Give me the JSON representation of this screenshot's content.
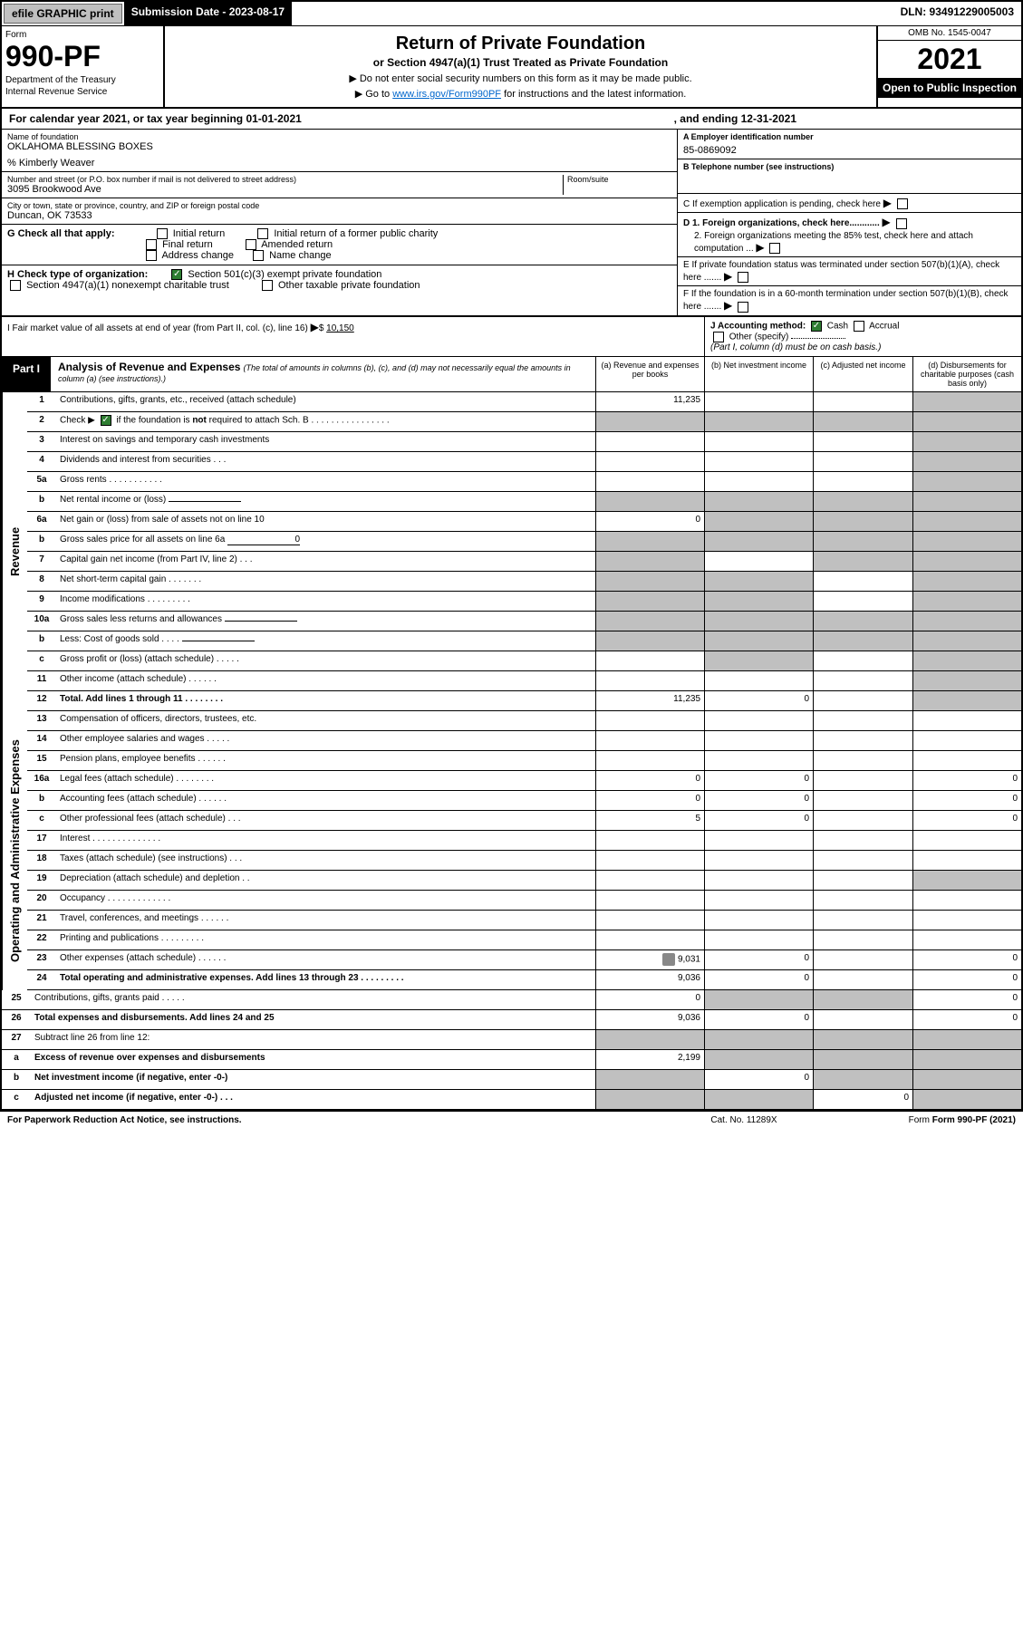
{
  "topbar": {
    "efile": "efile GRAPHIC print",
    "submission": "Submission Date - 2023-08-17",
    "dln": "DLN: 93491229005003"
  },
  "header": {
    "form_label": "Form",
    "form_num": "990-PF",
    "dept1": "Department of the Treasury",
    "dept2": "Internal Revenue Service",
    "title": "Return of Private Foundation",
    "subtitle": "or Section 4947(a)(1) Trust Treated as Private Foundation",
    "note1": "▶ Do not enter social security numbers on this form as it may be made public.",
    "note2_pre": "▶ Go to ",
    "note2_link": "www.irs.gov/Form990PF",
    "note2_post": " for instructions and the latest information.",
    "omb": "OMB No. 1545-0047",
    "year": "2021",
    "open": "Open to Public Inspection"
  },
  "calyear": {
    "text1": "For calendar year 2021, or tax year beginning 01-01-2021",
    "text2": ", and ending 12-31-2021"
  },
  "info": {
    "name_label": "Name of foundation",
    "name": "OKLAHOMA BLESSING BOXES",
    "care_of": "% Kimberly Weaver",
    "addr_label": "Number and street (or P.O. box number if mail is not delivered to street address)",
    "addr": "3095 Brookwood Ave",
    "room_label": "Room/suite",
    "city_label": "City or town, state or province, country, and ZIP or foreign postal code",
    "city": "Duncan, OK  73533",
    "ein_label": "A Employer identification number",
    "ein": "85-0869092",
    "phone_label": "B Telephone number (see instructions)",
    "c_label": "C If exemption application is pending, check here",
    "d1": "D 1. Foreign organizations, check here............",
    "d2": "2. Foreign organizations meeting the 85% test, check here and attach computation ...",
    "e_label": "E If private foundation status was terminated under section 507(b)(1)(A), check here .......",
    "f_label": "F If the foundation is in a 60-month termination under section 507(b)(1)(B), check here .......",
    "g_label": "G Check all that apply:",
    "g_opts": [
      "Initial return",
      "Initial return of a former public charity",
      "Final return",
      "Amended return",
      "Address change",
      "Name change"
    ],
    "h_label": "H Check type of organization:",
    "h_opt1": "Section 501(c)(3) exempt private foundation",
    "h_opt2": "Section 4947(a)(1) nonexempt charitable trust",
    "h_opt3": "Other taxable private foundation",
    "i_label": "I Fair market value of all assets at end of year (from Part II, col. (c), line 16)",
    "i_val": "10,150",
    "j_label": "J Accounting method:",
    "j_cash": "Cash",
    "j_accrual": "Accrual",
    "j_other": "Other (specify)",
    "j_note": "(Part I, column (d) must be on cash basis.)"
  },
  "part1": {
    "label": "Part I",
    "title": "Analysis of Revenue and Expenses",
    "title_note": "(The total of amounts in columns (b), (c), and (d) may not necessarily equal the amounts in column (a) (see instructions).)",
    "col_a": "(a) Revenue and expenses per books",
    "col_b": "(b) Net investment income",
    "col_c": "(c) Adjusted net income",
    "col_d": "(d) Disbursements for charitable purposes (cash basis only)"
  },
  "sidelabels": {
    "revenue": "Revenue",
    "expenses": "Operating and Administrative Expenses"
  },
  "rows": [
    {
      "num": "1",
      "desc": "Contributions, gifts, grants, etc., received (attach schedule)",
      "a": "11,235",
      "b": "",
      "c": "",
      "d": "",
      "shade": [
        "d"
      ]
    },
    {
      "num": "2",
      "desc": "Check ▶ ☑ if the foundation is not required to attach Sch. B",
      "a": "",
      "b": "",
      "c": "",
      "d": "",
      "shade": [
        "a",
        "b",
        "c",
        "d"
      ],
      "bold": false,
      "checkline": true
    },
    {
      "num": "3",
      "desc": "Interest on savings and temporary cash investments",
      "a": "",
      "b": "",
      "c": "",
      "d": "",
      "shade": [
        "d"
      ]
    },
    {
      "num": "4",
      "desc": "Dividends and interest from securities  .  .  .",
      "a": "",
      "b": "",
      "c": "",
      "d": "",
      "shade": [
        "d"
      ]
    },
    {
      "num": "5a",
      "desc": "Gross rents  .  .  .  .  .  .  .  .  .  .  .",
      "a": "",
      "b": "",
      "c": "",
      "d": "",
      "shade": [
        "d"
      ]
    },
    {
      "num": "b",
      "desc": "Net rental income or (loss)",
      "a": "",
      "b": "",
      "c": "",
      "d": "",
      "shade": [
        "a",
        "b",
        "c",
        "d"
      ],
      "inline": true
    },
    {
      "num": "6a",
      "desc": "Net gain or (loss) from sale of assets not on line 10",
      "a": "0",
      "b": "",
      "c": "",
      "d": "",
      "shade": [
        "b",
        "c",
        "d"
      ]
    },
    {
      "num": "b",
      "desc": "Gross sales price for all assets on line 6a",
      "a": "",
      "b": "",
      "c": "",
      "d": "",
      "shade": [
        "a",
        "b",
        "c",
        "d"
      ],
      "inline": true,
      "inline_val": "0"
    },
    {
      "num": "7",
      "desc": "Capital gain net income (from Part IV, line 2)  .  .  .",
      "a": "",
      "b": "",
      "c": "",
      "d": "",
      "shade": [
        "a",
        "c",
        "d"
      ]
    },
    {
      "num": "8",
      "desc": "Net short-term capital gain  .  .  .  .  .  .  .",
      "a": "",
      "b": "",
      "c": "",
      "d": "",
      "shade": [
        "a",
        "b",
        "d"
      ]
    },
    {
      "num": "9",
      "desc": "Income modifications  .  .  .  .  .  .  .  .  .",
      "a": "",
      "b": "",
      "c": "",
      "d": "",
      "shade": [
        "a",
        "b",
        "d"
      ]
    },
    {
      "num": "10a",
      "desc": "Gross sales less returns and allowances",
      "a": "",
      "b": "",
      "c": "",
      "d": "",
      "shade": [
        "a",
        "b",
        "c",
        "d"
      ],
      "inline": true
    },
    {
      "num": "b",
      "desc": "Less: Cost of goods sold  .  .  .  .",
      "a": "",
      "b": "",
      "c": "",
      "d": "",
      "shade": [
        "a",
        "b",
        "c",
        "d"
      ],
      "inline": true
    },
    {
      "num": "c",
      "desc": "Gross profit or (loss) (attach schedule)  .  .  .  .  .",
      "a": "",
      "b": "",
      "c": "",
      "d": "",
      "shade": [
        "b",
        "d"
      ]
    },
    {
      "num": "11",
      "desc": "Other income (attach schedule)  .  .  .  .  .  .",
      "a": "",
      "b": "",
      "c": "",
      "d": "",
      "shade": [
        "d"
      ]
    },
    {
      "num": "12",
      "desc": "Total. Add lines 1 through 11  .  .  .  .  .  .  .  .",
      "a": "11,235",
      "b": "0",
      "c": "",
      "d": "",
      "shade": [
        "d"
      ],
      "bold": true
    },
    {
      "num": "13",
      "desc": "Compensation of officers, directors, trustees, etc.",
      "a": "",
      "b": "",
      "c": "",
      "d": ""
    },
    {
      "num": "14",
      "desc": "Other employee salaries and wages  .  .  .  .  .",
      "a": "",
      "b": "",
      "c": "",
      "d": ""
    },
    {
      "num": "15",
      "desc": "Pension plans, employee benefits  .  .  .  .  .  .",
      "a": "",
      "b": "",
      "c": "",
      "d": ""
    },
    {
      "num": "16a",
      "desc": "Legal fees (attach schedule)  .  .  .  .  .  .  .  .",
      "a": "0",
      "b": "0",
      "c": "",
      "d": "0"
    },
    {
      "num": "b",
      "desc": "Accounting fees (attach schedule)  .  .  .  .  .  .",
      "a": "0",
      "b": "0",
      "c": "",
      "d": "0"
    },
    {
      "num": "c",
      "desc": "Other professional fees (attach schedule)  .  .  .",
      "a": "5",
      "b": "0",
      "c": "",
      "d": "0"
    },
    {
      "num": "17",
      "desc": "Interest  .  .  .  .  .  .  .  .  .  .  .  .  .  .",
      "a": "",
      "b": "",
      "c": "",
      "d": ""
    },
    {
      "num": "18",
      "desc": "Taxes (attach schedule) (see instructions)  .  .  .",
      "a": "",
      "b": "",
      "c": "",
      "d": ""
    },
    {
      "num": "19",
      "desc": "Depreciation (attach schedule) and depletion  .  .",
      "a": "",
      "b": "",
      "c": "",
      "d": "",
      "shade": [
        "d"
      ]
    },
    {
      "num": "20",
      "desc": "Occupancy  .  .  .  .  .  .  .  .  .  .  .  .  .",
      "a": "",
      "b": "",
      "c": "",
      "d": ""
    },
    {
      "num": "21",
      "desc": "Travel, conferences, and meetings  .  .  .  .  .  .",
      "a": "",
      "b": "",
      "c": "",
      "d": ""
    },
    {
      "num": "22",
      "desc": "Printing and publications  .  .  .  .  .  .  .  .  .",
      "a": "",
      "b": "",
      "c": "",
      "d": ""
    },
    {
      "num": "23",
      "desc": "Other expenses (attach schedule)  .  .  .  .  .  .",
      "a": "9,031",
      "b": "0",
      "c": "",
      "d": "0",
      "attach": true
    },
    {
      "num": "24",
      "desc": "Total operating and administrative expenses. Add lines 13 through 23  .  .  .  .  .  .  .  .  .",
      "a": "9,036",
      "b": "0",
      "c": "",
      "d": "0",
      "bold": true
    },
    {
      "num": "25",
      "desc": "Contributions, gifts, grants paid  .  .  .  .  .",
      "a": "0",
      "b": "",
      "c": "",
      "d": "0",
      "shade": [
        "b",
        "c"
      ]
    },
    {
      "num": "26",
      "desc": "Total expenses and disbursements. Add lines 24 and 25",
      "a": "9,036",
      "b": "0",
      "c": "",
      "d": "0",
      "bold": true
    },
    {
      "num": "27",
      "desc": "Subtract line 26 from line 12:",
      "a": "",
      "b": "",
      "c": "",
      "d": "",
      "shade": [
        "a",
        "b",
        "c",
        "d"
      ]
    },
    {
      "num": "a",
      "desc": "Excess of revenue over expenses and disbursements",
      "a": "2,199",
      "b": "",
      "c": "",
      "d": "",
      "shade": [
        "b",
        "c",
        "d"
      ],
      "bold": true
    },
    {
      "num": "b",
      "desc": "Net investment income (if negative, enter -0-)",
      "a": "",
      "b": "0",
      "c": "",
      "d": "",
      "shade": [
        "a",
        "c",
        "d"
      ],
      "bold": true
    },
    {
      "num": "c",
      "desc": "Adjusted net income (if negative, enter -0-)  .  .  .",
      "a": "",
      "b": "",
      "c": "0",
      "d": "",
      "shade": [
        "a",
        "b",
        "d"
      ],
      "bold": true
    }
  ],
  "footer": {
    "left": "For Paperwork Reduction Act Notice, see instructions.",
    "mid": "Cat. No. 11289X",
    "right": "Form 990-PF (2021)"
  },
  "colors": {
    "black": "#000000",
    "grey": "#c0c0c0",
    "link": "#0066cc",
    "check_green": "#2e7d32"
  }
}
